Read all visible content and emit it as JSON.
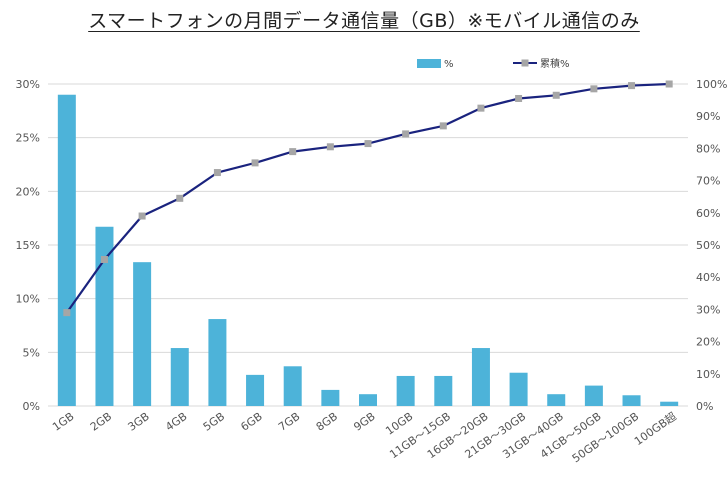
{
  "colors": {
    "bar": "#4db3d9",
    "line": "#1a237e",
    "marker": "#a6a6a6",
    "grid": "#d9d9d9"
  },
  "chart_data": {
    "type": "bar",
    "title": "スマートフォンの月間データ通信量（GB）※モバイル通信のみ",
    "categories": [
      "1GB",
      "2GB",
      "3GB",
      "4GB",
      "5GB",
      "6GB",
      "7GB",
      "8GB",
      "9GB",
      "10GB",
      "11GB～15GB",
      "16GB～20GB",
      "21GB～30GB",
      "31GB～40GB",
      "41GB～50GB",
      "50GB～100GB",
      "100GB超"
    ],
    "series": [
      {
        "name": "%",
        "type": "bar",
        "axis": "left",
        "values": [
          29.0,
          16.7,
          13.4,
          5.4,
          8.1,
          2.9,
          3.7,
          1.5,
          1.1,
          2.8,
          2.8,
          5.4,
          3.1,
          1.1,
          1.9,
          1.0,
          0.4
        ]
      },
      {
        "name": "累積%",
        "type": "line",
        "axis": "right",
        "values": [
          29,
          45.5,
          59,
          64.5,
          72.5,
          75.5,
          79,
          80.5,
          81.5,
          84.5,
          87,
          92.5,
          95.5,
          96.5,
          98.5,
          99.5,
          100
        ]
      }
    ],
    "y_left": {
      "min": 0,
      "max": 30,
      "ticks": [
        "0%",
        "5%",
        "10%",
        "15%",
        "20%",
        "25%",
        "30%"
      ]
    },
    "y_right": {
      "min": 0,
      "max": 100,
      "ticks": [
        "0%",
        "10%",
        "20%",
        "30%",
        "40%",
        "50%",
        "60%",
        "70%",
        "80%",
        "90%",
        "100%"
      ]
    },
    "legend_position": "top-right",
    "grid": true
  }
}
